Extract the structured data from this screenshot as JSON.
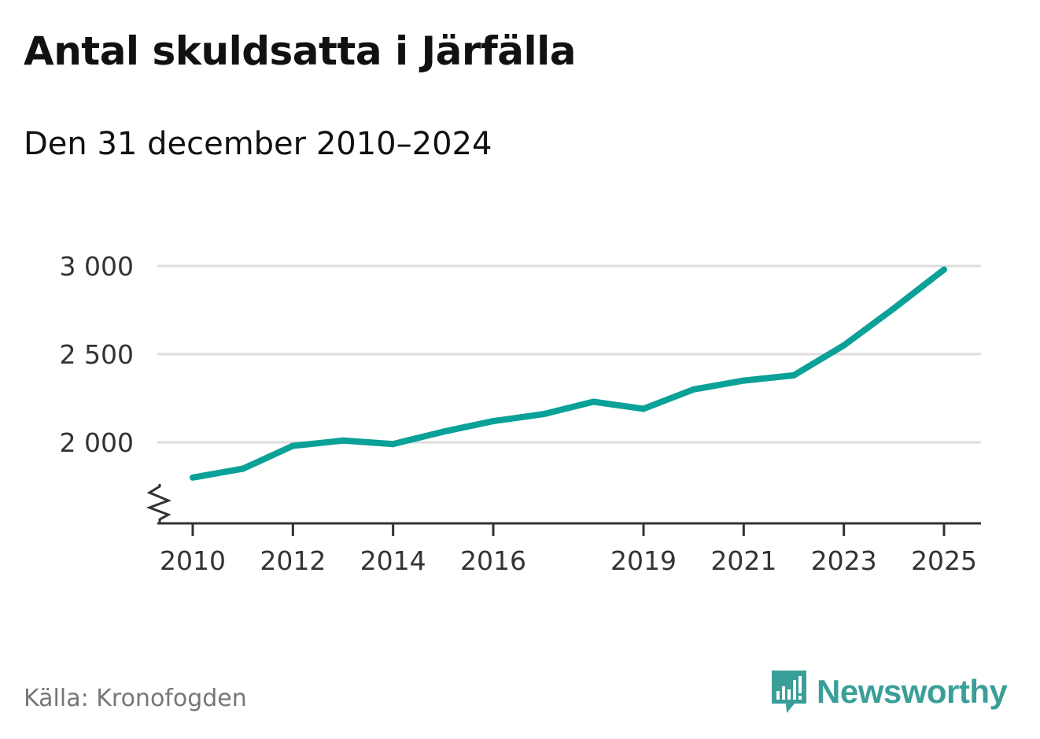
{
  "title": "Antal skuldsatta i Järfälla",
  "subtitle": "Den 31 december 2010–2024",
  "source": "Källa: Kronofogden",
  "brand": {
    "name": "Newsworthy",
    "icon": "bar-chart-speech-bubble-icon",
    "color": "#3a9f98"
  },
  "colors": {
    "line": "#0aa198",
    "grid": "#dddddd",
    "axis": "#333333",
    "tick_text": "#333333"
  },
  "chart_data": {
    "type": "line",
    "title": "Antal skuldsatta i Järfälla",
    "xlabel": "",
    "ylabel": "",
    "xlim": [
      2010,
      2025
    ],
    "ylim": [
      1600,
      3000
    ],
    "y_axis_break": true,
    "grid": true,
    "x_ticks": [
      {
        "value": 2010,
        "label": "2010"
      },
      {
        "value": 2012,
        "label": "2012"
      },
      {
        "value": 2014,
        "label": "2014"
      },
      {
        "value": 2016,
        "label": "2016"
      },
      {
        "value": 2019,
        "label": "2019"
      },
      {
        "value": 2021,
        "label": "2021"
      },
      {
        "value": 2023,
        "label": "2023"
      },
      {
        "value": 2025,
        "label": "2025"
      }
    ],
    "y_ticks": [
      {
        "value": 2000,
        "label": "2 000"
      },
      {
        "value": 2500,
        "label": "2 500"
      },
      {
        "value": 3000,
        "label": "3 000"
      }
    ],
    "series": [
      {
        "name": "Antal skuldsatta",
        "x": [
          2010,
          2011,
          2012,
          2013,
          2014,
          2015,
          2016,
          2017,
          2018,
          2019,
          2020,
          2021,
          2022,
          2023,
          2024,
          2025
        ],
        "values": [
          1800,
          1850,
          1980,
          2010,
          1990,
          2060,
          2120,
          2160,
          2230,
          2190,
          2300,
          2350,
          2380,
          2550,
          2760,
          2980
        ]
      }
    ]
  }
}
